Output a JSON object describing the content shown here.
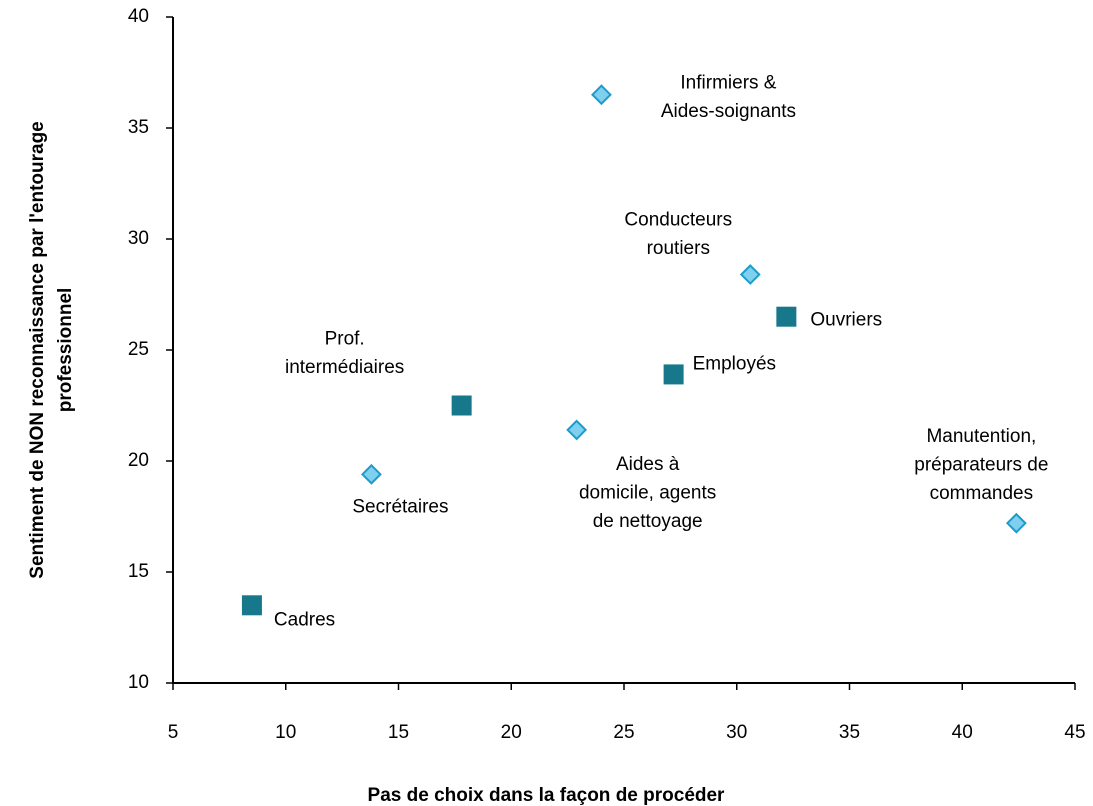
{
  "chart_data": {
    "type": "scatter",
    "x_label": "Pas de choix dans la façon de procéder",
    "y_label": [
      "Sentiment de NON reconnaissance  par l'entourage",
      "professionnel"
    ],
    "xlim": [
      5,
      45
    ],
    "xticks": [
      5,
      10,
      15,
      20,
      25,
      30,
      35,
      40,
      45
    ],
    "ylim": [
      10,
      40
    ],
    "yticks": [
      10,
      15,
      20,
      25,
      30,
      35,
      40
    ],
    "series": [
      {
        "marker": "square",
        "color": "#17788c",
        "x": [
          8.5,
          17.8,
          27.2,
          32.2
        ],
        "values": [
          13.5,
          22.5,
          23.9,
          26.5
        ],
        "labels": [
          [
            "Cadres"
          ],
          [
            "Prof.",
            "intermédiaires"
          ],
          [
            "Employés"
          ],
          [
            "Ouvriers"
          ]
        ]
      },
      {
        "marker": "diamond",
        "color": "#7fd0ee",
        "x": [
          13.8,
          22.9,
          24.0,
          30.6,
          42.4
        ],
        "values": [
          19.4,
          21.4,
          36.5,
          28.4,
          17.2
        ],
        "labels": [
          [
            "Secrétaires"
          ],
          [
            "Aides à",
            "domicile, agents",
            "de nettoyage"
          ],
          [
            "Infirmiers &",
            "Aides-soignants"
          ],
          [
            "Conducteurs",
            "routiers"
          ],
          [
            "Manutention,",
            "préparateurs  de",
            "commandes"
          ]
        ]
      }
    ]
  }
}
